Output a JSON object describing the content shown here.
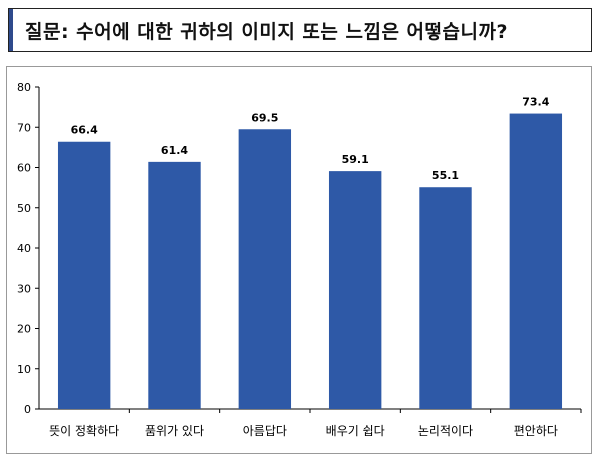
{
  "question": {
    "text": "질문: 수어에 대한 귀하의 이미지 또는 느낌은 어떻습니까?"
  },
  "colors": {
    "bar": "#2e59a7",
    "axis": "#000000",
    "accent_bar": "#2e4a8c"
  },
  "chart_data": {
    "type": "bar",
    "categories": [
      "뜻이 정확하다",
      "품위가 있다",
      "아름답다",
      "배우기 쉽다",
      "논리적이다",
      "편안하다"
    ],
    "values": [
      66.4,
      61.4,
      69.5,
      59.1,
      55.1,
      73.4
    ],
    "value_labels": [
      "66.4",
      "61.4",
      "69.5",
      "59.1",
      "55.1",
      "73.4"
    ],
    "ylim": [
      0,
      80
    ],
    "yticks": [
      0,
      10,
      20,
      30,
      40,
      50,
      60,
      70,
      80
    ],
    "grid": false,
    "legend": "none"
  }
}
